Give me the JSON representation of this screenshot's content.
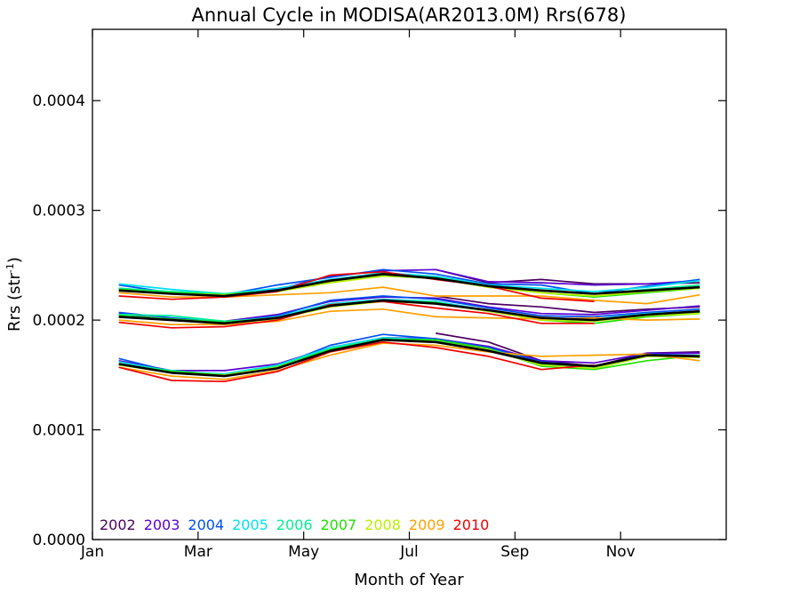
{
  "chart_data": {
    "type": "line",
    "title": "Annual Cycle in MODISA(AR2013.0M) Rrs(678)",
    "xlabel": "Month of Year",
    "ylabel_main": "Rrs (str",
    "ylabel_sup": "-1",
    "ylabel_close": ")",
    "xlim": [
      0.5,
      12.5
    ],
    "ylim": [
      0.0,
      0.000465
    ],
    "x_ticks": [
      {
        "value": 0.5,
        "label": "Jan"
      },
      {
        "value": 2.5,
        "label": "Mar"
      },
      {
        "value": 4.5,
        "label": "May"
      },
      {
        "value": 6.5,
        "label": "Jul"
      },
      {
        "value": 8.5,
        "label": "Sep"
      },
      {
        "value": 10.5,
        "label": "Nov"
      }
    ],
    "y_ticks": [
      {
        "value": 0.0,
        "label": "0.0000"
      },
      {
        "value": 0.0001,
        "label": "0.0001"
      },
      {
        "value": 0.0002,
        "label": "0.0002"
      },
      {
        "value": 0.0003,
        "label": "0.0003"
      },
      {
        "value": 0.0004,
        "label": "0.0004"
      }
    ],
    "x": [
      1,
      2,
      3,
      4,
      5,
      6,
      7,
      8,
      9,
      10,
      11,
      12
    ],
    "legend_position": "bottom-left",
    "series": [
      {
        "name": "2002",
        "color": "#4B0060",
        "lower": [
          null,
          null,
          null,
          null,
          null,
          null,
          0.000188,
          0.00018,
          0.000163,
          0.000158,
          0.00017,
          0.000171
        ],
        "middle": [
          null,
          null,
          null,
          null,
          null,
          null,
          0.000222,
          0.000215,
          0.000212,
          0.000207,
          0.00021,
          0.000212
        ],
        "upper": [
          null,
          null,
          null,
          null,
          null,
          null,
          0.000246,
          0.000234,
          0.000237,
          0.000233,
          0.000233,
          0.000234
        ]
      },
      {
        "name": "2003",
        "color": "#5A00D0",
        "lower": [
          0.000163,
          0.000154,
          0.000154,
          0.00016,
          0.000175,
          0.000184,
          0.000183,
          0.000176,
          0.000163,
          0.000161,
          0.00017,
          0.00017
        ],
        "middle": [
          0.000206,
          0.0002,
          0.000199,
          0.000205,
          0.000217,
          0.000221,
          0.00022,
          0.000212,
          0.000206,
          0.000205,
          0.000209,
          0.000213
        ],
        "upper": [
          0.000229,
          0.000225,
          0.000223,
          0.000228,
          0.00024,
          0.000245,
          0.000246,
          0.000235,
          0.000234,
          0.000232,
          0.000233,
          0.000236
        ]
      },
      {
        "name": "2004",
        "color": "#0050F0",
        "lower": [
          0.000165,
          0.000153,
          0.000149,
          0.000158,
          0.000177,
          0.000187,
          0.000183,
          0.000175,
          0.000162,
          0.000158,
          0.000169,
          0.000168
        ],
        "middle": [
          0.000207,
          0.000202,
          0.000198,
          0.000204,
          0.000218,
          0.000222,
          0.000219,
          0.000211,
          0.000204,
          0.000203,
          0.000207,
          0.00021
        ],
        "upper": [
          0.000232,
          0.000225,
          0.000223,
          0.000232,
          0.000239,
          0.000246,
          0.000242,
          0.000233,
          0.000232,
          0.000224,
          0.000231,
          0.000237
        ]
      },
      {
        "name": "2005",
        "color": "#00E0F0",
        "lower": [
          0.000162,
          0.000153,
          0.000151,
          0.000159,
          0.000175,
          0.000184,
          0.000182,
          0.000174,
          0.00016,
          0.000157,
          0.000168,
          0.000167
        ],
        "middle": [
          0.000205,
          0.000204,
          0.000198,
          0.000203,
          0.000215,
          0.000219,
          0.000217,
          0.000209,
          0.000202,
          0.000201,
          0.000206,
          0.000208
        ],
        "upper": [
          0.000233,
          0.000228,
          0.000224,
          0.000229,
          0.000237,
          0.000243,
          0.00024,
          0.000232,
          0.000229,
          0.000226,
          0.00023,
          0.000236
        ]
      },
      {
        "name": "2006",
        "color": "#00F090",
        "lower": [
          0.00016,
          0.000154,
          0.00015,
          0.000158,
          0.000174,
          0.000183,
          0.000182,
          0.000173,
          0.000159,
          0.000156,
          0.000167,
          0.000167
        ],
        "middle": [
          0.000205,
          0.000204,
          0.000199,
          0.000202,
          0.000214,
          0.000218,
          0.000216,
          0.000208,
          0.000201,
          0.000199,
          0.000205,
          0.000207
        ],
        "upper": [
          0.000229,
          0.000226,
          0.000224,
          0.000227,
          0.000236,
          0.000242,
          0.000239,
          0.000231,
          0.000227,
          0.000224,
          0.000228,
          0.000232
        ]
      },
      {
        "name": "2007",
        "color": "#20E000",
        "lower": [
          0.000159,
          0.000153,
          0.00015,
          0.000157,
          0.000173,
          0.000182,
          0.000182,
          0.000174,
          0.000158,
          0.000155,
          0.000163,
          0.000168
        ],
        "middle": [
          0.000204,
          0.000201,
          0.000198,
          0.000201,
          0.000213,
          0.000218,
          0.000216,
          0.000208,
          0.0002,
          0.000197,
          0.000203,
          0.000206
        ],
        "upper": [
          0.000228,
          0.000225,
          0.000223,
          0.000227,
          0.000235,
          0.000241,
          0.000238,
          0.00023,
          0.000225,
          0.000221,
          0.000225,
          0.000229
        ]
      },
      {
        "name": "2008",
        "color": "#B8F000",
        "lower": [
          0.000159,
          0.000152,
          0.00015,
          0.000157,
          0.000172,
          0.000182,
          0.00018,
          0.000173,
          0.000159,
          0.000156,
          0.000167,
          0.000166
        ],
        "middle": [
          0.000203,
          0.0002,
          0.000197,
          0.000201,
          0.000212,
          0.000217,
          0.000215,
          0.000208,
          0.0002,
          0.000199,
          0.000204,
          0.000206
        ],
        "upper": [
          0.000227,
          0.000224,
          0.000223,
          0.000226,
          0.000234,
          0.00024,
          0.000238,
          0.00023,
          0.000225,
          0.000222,
          0.000226,
          0.000229
        ]
      },
      {
        "name": "2009",
        "color": "#FFA000",
        "lower": [
          0.000157,
          0.000149,
          0.000146,
          0.000154,
          0.000168,
          0.000179,
          0.000177,
          0.000171,
          0.000167,
          0.000168,
          0.000169,
          0.000163
        ],
        "middle": [
          0.0002,
          0.000196,
          0.000196,
          0.000199,
          0.000208,
          0.00021,
          0.000203,
          0.000202,
          0.000201,
          0.000202,
          0.0002,
          0.000201
        ],
        "upper": [
          0.000225,
          0.000221,
          0.000221,
          0.000223,
          0.000225,
          0.00023,
          0.000222,
          0.000222,
          0.000222,
          0.000218,
          0.000215,
          0.000223
        ]
      },
      {
        "name": "2010",
        "color": "#F00000",
        "lower": [
          0.000157,
          0.000145,
          0.000144,
          0.000153,
          0.000171,
          0.00018,
          0.000175,
          0.000167,
          0.000155,
          0.000159,
          null,
          null
        ],
        "middle": [
          0.000198,
          0.000193,
          0.000194,
          0.0002,
          0.000214,
          0.000217,
          0.000211,
          0.000206,
          0.000197,
          0.000197,
          null,
          null
        ],
        "upper": [
          0.000222,
          0.000219,
          0.000221,
          0.000226,
          0.000241,
          0.000244,
          0.000237,
          0.000231,
          0.00022,
          0.000217,
          null,
          null
        ]
      },
      {
        "name": "mean",
        "color": "#000000",
        "legend": false,
        "lower": [
          0.00016,
          0.000152,
          0.000149,
          0.000156,
          0.000172,
          0.000182,
          0.00018,
          0.000172,
          0.000161,
          0.000158,
          0.000168,
          0.000167
        ],
        "middle": [
          0.000203,
          0.0002,
          0.000197,
          0.000202,
          0.000213,
          0.000218,
          0.000215,
          0.000209,
          0.000202,
          0.0002,
          0.000205,
          0.000208
        ],
        "upper": [
          0.000227,
          0.000224,
          0.000222,
          0.000227,
          0.000236,
          0.000242,
          0.000238,
          0.000231,
          0.000227,
          0.000224,
          0.000227,
          0.00023
        ]
      }
    ]
  }
}
